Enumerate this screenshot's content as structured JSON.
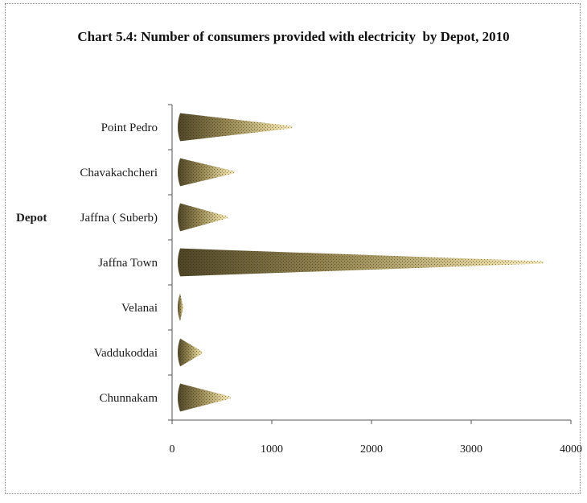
{
  "chart_data": {
    "type": "bar",
    "title": "Chart 5.4: Number of consumers provided with electricity  by Depot, 2010",
    "ylabel": "Depot",
    "xlabel": "",
    "categories": [
      "Point Pedro",
      "Chavakachcheri",
      "Jaffna ( Suberb)",
      "Jaffna Town",
      "Velanai",
      "Vaddukoddai",
      "Chunnakam"
    ],
    "values": [
      1200,
      620,
      550,
      3720,
      110,
      300,
      580
    ],
    "xlim": [
      0,
      4000
    ],
    "xticks": [
      "0",
      "1000",
      "2000",
      "3000",
      "4000"
    ],
    "orientation": "horizontal",
    "grid": false,
    "colors": {
      "bar_dark": "#5a4f2c",
      "bar_light": "#e8d9a0",
      "bar_mid": "#a8975e"
    }
  }
}
